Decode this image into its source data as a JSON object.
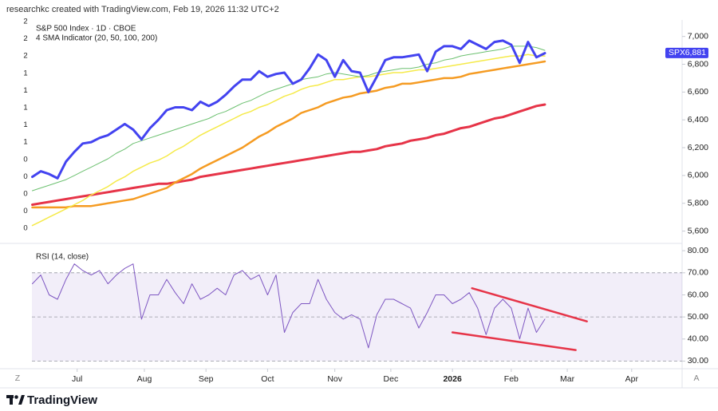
{
  "header": {
    "text": "researchkc created with TradingView.com, Feb 19, 2026 11:32 UTC+2"
  },
  "footer": {
    "brand": "TradingView"
  },
  "controls": {
    "left": "Z",
    "right": "A"
  },
  "left_axis_labels": [
    "2",
    "2",
    "2",
    "1",
    "1",
    "1",
    "1",
    "1",
    "0",
    "0",
    "0",
    "0",
    "0"
  ],
  "chart_data": [
    {
      "type": "line",
      "title": "S&P 500 Index · 1D · CBOE",
      "subtitle": "4 SMA Indicator (20, 50, 100, 200)",
      "x": [
        0,
        3,
        6,
        9,
        12,
        15,
        18,
        21,
        24,
        27,
        30,
        33,
        36,
        39,
        42,
        45,
        48,
        51,
        54,
        57,
        60,
        63,
        66,
        69,
        72,
        75,
        78,
        81,
        84,
        87,
        90,
        93,
        96,
        99,
        102,
        105,
        108,
        111,
        114,
        117,
        120,
        123,
        126,
        129,
        132,
        135,
        138,
        141,
        144,
        147,
        150,
        153,
        156,
        159,
        162,
        165,
        168,
        171,
        174,
        177,
        180,
        183
      ],
      "series": [
        {
          "name": "SPX",
          "color": "#4343f0",
          "values": [
            5990,
            6030,
            6010,
            5980,
            6100,
            6170,
            6230,
            6240,
            6270,
            6290,
            6330,
            6370,
            6330,
            6260,
            6340,
            6400,
            6470,
            6490,
            6490,
            6470,
            6530,
            6500,
            6530,
            6580,
            6640,
            6690,
            6690,
            6750,
            6710,
            6730,
            6740,
            6660,
            6690,
            6770,
            6870,
            6830,
            6710,
            6830,
            6750,
            6740,
            6600,
            6710,
            6830,
            6850,
            6850,
            6860,
            6870,
            6750,
            6890,
            6930,
            6930,
            6910,
            6970,
            6940,
            6910,
            6960,
            6970,
            6940,
            6810,
            6960,
            6850,
            6880
          ]
        },
        {
          "color": "#6cc070",
          "values": [
            5890,
            5910,
            5930,
            5950,
            5970,
            6000,
            6030,
            6060,
            6090,
            6120,
            6160,
            6190,
            6230,
            6250,
            6270,
            6290,
            6310,
            6330,
            6350,
            6370,
            6390,
            6410,
            6440,
            6460,
            6490,
            6520,
            6540,
            6570,
            6600,
            6620,
            6640,
            6660,
            6690,
            6700,
            6710,
            6730,
            6740,
            6730,
            6720,
            6710,
            6720,
            6740,
            6750,
            6760,
            6770,
            6770,
            6780,
            6800,
            6810,
            6830,
            6840,
            6860,
            6870,
            6880,
            6890,
            6900,
            6910,
            6930,
            6930,
            6930,
            6920,
            6900
          ]
        },
        {
          "color": "#f5ea4a",
          "values": [
            5640,
            5670,
            5700,
            5730,
            5760,
            5790,
            5820,
            5860,
            5890,
            5920,
            5960,
            5990,
            6030,
            6060,
            6090,
            6110,
            6140,
            6180,
            6210,
            6250,
            6290,
            6320,
            6350,
            6380,
            6410,
            6440,
            6460,
            6490,
            6510,
            6540,
            6570,
            6590,
            6620,
            6640,
            6650,
            6670,
            6690,
            6690,
            6700,
            6710,
            6710,
            6720,
            6730,
            6740,
            6740,
            6750,
            6760,
            6760,
            6770,
            6780,
            6790,
            6800,
            6810,
            6820,
            6830,
            6840,
            6850,
            6860,
            6860,
            6870,
            6860,
            6860
          ]
        },
        {
          "color": "#f59b22",
          "values": [
            5770,
            5770,
            5770,
            5770,
            5770,
            5780,
            5780,
            5780,
            5790,
            5800,
            5810,
            5820,
            5830,
            5850,
            5870,
            5890,
            5910,
            5950,
            5980,
            6010,
            6050,
            6080,
            6110,
            6140,
            6170,
            6200,
            6240,
            6280,
            6310,
            6350,
            6380,
            6410,
            6450,
            6470,
            6490,
            6520,
            6540,
            6560,
            6570,
            6590,
            6600,
            6610,
            6630,
            6640,
            6660,
            6660,
            6670,
            6680,
            6690,
            6700,
            6700,
            6710,
            6730,
            6740,
            6750,
            6760,
            6770,
            6780,
            6790,
            6800,
            6810,
            6820
          ]
        },
        {
          "color": "#e63448",
          "values": [
            5790,
            5800,
            5810,
            5820,
            5830,
            5840,
            5850,
            5860,
            5870,
            5880,
            5890,
            5900,
            5910,
            5920,
            5930,
            5940,
            5940,
            5950,
            5960,
            5970,
            5990,
            6000,
            6010,
            6020,
            6030,
            6040,
            6050,
            6060,
            6070,
            6080,
            6090,
            6100,
            6110,
            6120,
            6130,
            6140,
            6150,
            6160,
            6170,
            6170,
            6180,
            6190,
            6210,
            6220,
            6230,
            6250,
            6260,
            6270,
            6290,
            6300,
            6320,
            6340,
            6350,
            6370,
            6390,
            6410,
            6420,
            6440,
            6460,
            6480,
            6500,
            6510
          ]
        }
      ],
      "last_value": {
        "value": 6881,
        "label": "6,881"
      },
      "xlim": [
        -3,
        232
      ],
      "ylim": [
        5540,
        7090
      ],
      "yticks": [
        {
          "value": 5600,
          "label": "5,600"
        },
        {
          "value": 5800,
          "label": "5,800"
        },
        {
          "value": 6000,
          "label": "6,000"
        },
        {
          "value": 6200,
          "label": "6,200"
        },
        {
          "value": 6400,
          "label": "6,400"
        },
        {
          "value": 6600,
          "label": "6,600"
        },
        {
          "value": 6800,
          "label": "6,800"
        },
        {
          "value": 7000,
          "label": "7,000"
        }
      ],
      "grid": false
    },
    {
      "type": "line",
      "title": "RSI (14, close)",
      "x": [
        0,
        3,
        6,
        9,
        12,
        15,
        18,
        21,
        24,
        27,
        30,
        33,
        36,
        39,
        42,
        45,
        48,
        51,
        54,
        57,
        60,
        63,
        66,
        69,
        72,
        75,
        78,
        81,
        84,
        87,
        90,
        93,
        96,
        99,
        102,
        105,
        108,
        111,
        114,
        117,
        120,
        123,
        126,
        129,
        132,
        135,
        138,
        141,
        144,
        147,
        150,
        153,
        156,
        159,
        162,
        165,
        168,
        171,
        174,
        177,
        180,
        183
      ],
      "series": [
        {
          "color": "#7e57c2",
          "values": [
            65,
            69,
            60,
            58,
            67,
            74,
            71,
            69,
            71,
            65,
            69,
            72,
            74,
            49,
            60,
            60,
            67,
            61,
            56,
            65,
            58,
            60,
            63,
            60,
            69,
            71,
            67,
            69,
            60,
            69,
            43,
            52,
            56,
            56,
            67,
            58,
            52,
            49,
            51,
            49,
            36,
            51,
            58,
            58,
            56,
            54,
            45,
            52,
            60,
            60,
            56,
            58,
            61,
            54,
            42,
            54,
            58,
            54,
            40,
            54,
            43,
            49
          ]
        }
      ],
      "band": [
        30,
        70
      ],
      "band_color": "#7e57c2",
      "levels": [
        70,
        50,
        30
      ],
      "trendlines": [
        {
          "color": "#e63448",
          "x": [
            157,
            198
          ],
          "values": [
            63,
            48
          ]
        },
        {
          "color": "#e63448",
          "x": [
            150,
            194
          ],
          "values": [
            43,
            35
          ]
        }
      ],
      "xlim": [
        -3,
        232
      ],
      "ylim": [
        28,
        81.5
      ],
      "yticks": [
        {
          "value": 30,
          "label": "30.00"
        },
        {
          "value": 40,
          "label": "40.00"
        },
        {
          "value": 50,
          "label": "50.00"
        },
        {
          "value": 60,
          "label": "60.00"
        },
        {
          "value": 70,
          "label": "70.00"
        },
        {
          "value": 80,
          "label": "80.00"
        }
      ],
      "xticks": [
        {
          "value": 16,
          "label": "Jul"
        },
        {
          "value": 40,
          "label": "Aug"
        },
        {
          "value": 62,
          "label": "Sep"
        },
        {
          "value": 84,
          "label": "Oct"
        },
        {
          "value": 108,
          "label": "Nov"
        },
        {
          "value": 128,
          "label": "Dec"
        },
        {
          "value": 150,
          "label": "2026"
        },
        {
          "value": 171,
          "label": "Feb"
        },
        {
          "value": 191,
          "label": "Mar"
        },
        {
          "value": 214,
          "label": "Apr"
        }
      ],
      "grid": false
    }
  ]
}
